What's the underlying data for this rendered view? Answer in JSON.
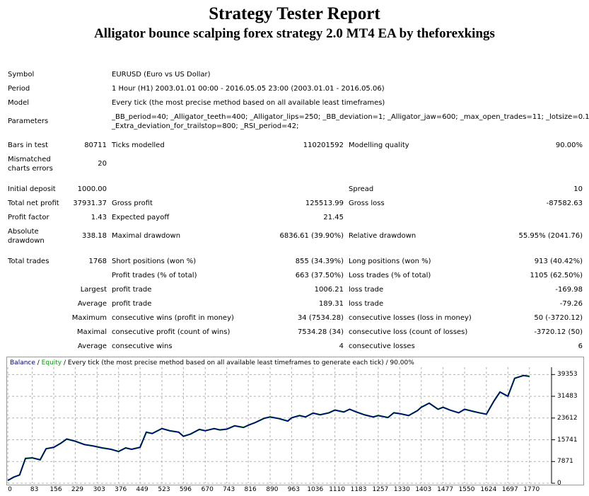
{
  "header": {
    "title": "Strategy Tester Report",
    "subtitle": "Alligator bounce scalping forex strategy 2.0 MT4 EA by theforexkings"
  },
  "info": {
    "symbol_label": "Symbol",
    "symbol_value": "EURUSD (Euro vs US Dollar)",
    "period_label": "Period",
    "period_value": "1 Hour (H1) 2003.01.01 00:00 - 2016.05.05 23:00 (2003.01.01 - 2016.05.06)",
    "model_label": "Model",
    "model_value": "Every tick (the most precise method based on all available least timeframes)",
    "parameters_label": "Parameters",
    "parameters_line1": "_BB_period=40; _Alligator_teeth=400; _Alligator_lips=250; _BB_deviation=1; _Alligator_jaw=600; _max_open_trades=11; _lotsize=0.1;",
    "parameters_line2": "_Extra_deviation_for_trailstop=800; _RSI_period=42;"
  },
  "stats": {
    "bars_label": "Bars in test",
    "bars_value": "80711",
    "ticks_label": "Ticks modelled",
    "ticks_value": "110201592",
    "quality_label": "Modelling quality",
    "quality_value": "90.00%",
    "mismatch_label_1": "Mismatched",
    "mismatch_label_2": "charts errors",
    "mismatch_value": "20",
    "deposit_label": "Initial deposit",
    "deposit_value": "1000.00",
    "spread_label": "Spread",
    "spread_value": "10",
    "netprofit_label": "Total net profit",
    "netprofit_value": "37931.37",
    "grossprofit_label": "Gross profit",
    "grossprofit_value": "125513.99",
    "grossloss_label": "Gross loss",
    "grossloss_value": "-87582.63",
    "pf_label": "Profit factor",
    "pf_value": "1.43",
    "payoff_label": "Expected payoff",
    "payoff_value": "21.45",
    "absdd_label_1": "Absolute",
    "absdd_label_2": "drawdown",
    "absdd_value": "338.18",
    "maxdd_label": "Maximal drawdown",
    "maxdd_value": "6836.61 (39.90%)",
    "reldd_label": "Relative drawdown",
    "reldd_value": "55.95% (2041.76)",
    "trades_label": "Total trades",
    "trades_value": "1768",
    "short_label": "Short positions (won %)",
    "short_value": "855 (34.39%)",
    "long_label": "Long positions (won %)",
    "long_value": "913 (40.42%)",
    "profit_trades_label": "Profit trades (% of total)",
    "profit_trades_value": "663 (37.50%)",
    "loss_trades_label": "Loss trades (% of total)",
    "loss_trades_value": "1105 (62.50%)",
    "largest_label": "Largest",
    "largest_profit_label": "profit trade",
    "largest_profit_value": "1006.21",
    "largest_loss_label": "loss trade",
    "largest_loss_value": "-169.98",
    "average_label": "Average",
    "average_profit_label": "profit trade",
    "average_profit_value": "189.31",
    "average_loss_label": "loss trade",
    "average_loss_value": "-79.26",
    "maximum_label": "Maximum",
    "max_wins_label": "consecutive wins (profit in money)",
    "max_wins_value": "34 (7534.28)",
    "max_losses_label": "consecutive losses (loss in money)",
    "max_losses_value": "50 (-3720.12)",
    "maximal_label": "Maximal",
    "maximal_profit_label": "consecutive profit (count of wins)",
    "maximal_profit_value": "7534.28 (34)",
    "maximal_loss_label": "consecutive loss (count of losses)",
    "maximal_loss_value": "-3720.12 (50)",
    "avg2_label": "Average",
    "avg_wins_label": "consecutive wins",
    "avg_wins_value": "4",
    "avg_losses_label": "consecutive losses",
    "avg_losses_value": "6"
  },
  "chart_data": {
    "type": "line",
    "legend_balance": "Balance",
    "legend_sep1": " / ",
    "legend_equity": "Equity",
    "legend_rest": " / Every tick (the most precise method based on all available least timeframes to generate each tick) / 90.00%",
    "balance_color": "#000080",
    "equity_color": "#00a000",
    "grid": true,
    "xlim": [
      0,
      1845
    ],
    "ylim": [
      0,
      42000
    ],
    "x_ticks": [
      0,
      83,
      156,
      229,
      303,
      376,
      449,
      523,
      596,
      670,
      743,
      816,
      890,
      963,
      1036,
      1110,
      1183,
      1257,
      1330,
      1403,
      1477,
      1550,
      1624,
      1697,
      1770
    ],
    "y_ticks": [
      0,
      7871,
      15741,
      23612,
      31483,
      39353
    ],
    "series": [
      {
        "name": "Balance",
        "x": [
          0,
          20,
          40,
          60,
          83,
          110,
          130,
          156,
          180,
          200,
          229,
          260,
          290,
          320,
          350,
          376,
          400,
          420,
          449,
          470,
          490,
          523,
          550,
          580,
          596,
          620,
          650,
          670,
          700,
          720,
          743,
          770,
          800,
          816,
          840,
          870,
          890,
          920,
          950,
          963,
          990,
          1010,
          1036,
          1060,
          1090,
          1110,
          1140,
          1160,
          1183,
          1210,
          1240,
          1257,
          1290,
          1310,
          1330,
          1360,
          1390,
          1403,
          1430,
          1460,
          1477,
          1500,
          1530,
          1550,
          1580,
          1600,
          1624,
          1650,
          1670,
          1697,
          1720,
          1750,
          1770
        ],
        "y": [
          1000,
          2200,
          3000,
          9000,
          9200,
          8500,
          12500,
          13000,
          14500,
          16000,
          15200,
          14000,
          13500,
          12800,
          12300,
          11500,
          12800,
          12300,
          13000,
          18500,
          18000,
          19800,
          19000,
          18500,
          17000,
          17800,
          19500,
          19000,
          19800,
          19300,
          19600,
          20800,
          20200,
          21000,
          22000,
          23500,
          24000,
          23400,
          22500,
          23700,
          24500,
          24000,
          25400,
          24800,
          25500,
          26500,
          25800,
          26800,
          25800,
          24800,
          24000,
          24500,
          23800,
          25500,
          25200,
          24500,
          26300,
          27500,
          29000,
          26800,
          27500,
          26500,
          25500,
          26800,
          26000,
          25500,
          25000,
          29800,
          33000,
          31500,
          38000,
          39000,
          38700
        ]
      }
    ]
  }
}
